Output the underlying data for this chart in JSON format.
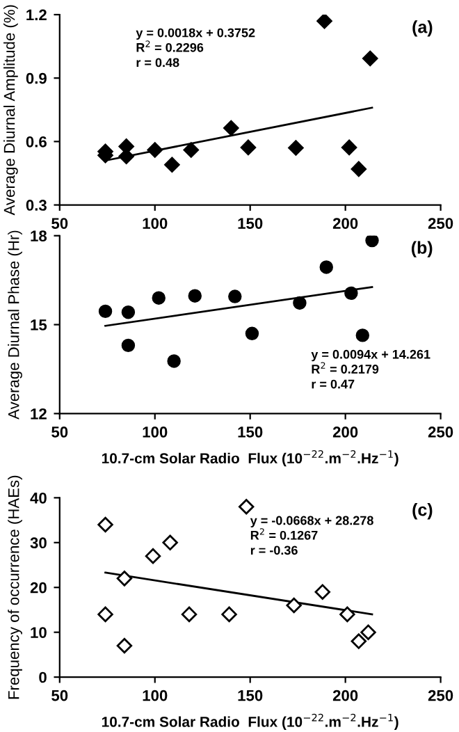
{
  "chart_data": [
    {
      "type": "scatter",
      "title": "(a)",
      "ylabel": "Average Diurnal Amplitude (%)",
      "xlim": [
        50,
        250
      ],
      "xticks": [
        50,
        100,
        150,
        200,
        250
      ],
      "ylim": [
        0.3,
        1.2
      ],
      "yticks": [
        0.3,
        0.6,
        0.9,
        1.2
      ],
      "grid": false,
      "legend": false,
      "series": [
        {
          "marker": "diamond",
          "color": "#000000",
          "x": [
            74,
            74,
            85,
            85,
            100,
            109,
            119,
            140,
            149,
            174,
            189,
            202,
            207,
            213
          ],
          "values": [
            0.535,
            0.553,
            0.577,
            0.53,
            0.56,
            0.49,
            0.56,
            0.664,
            0.572,
            0.57,
            1.17,
            0.572,
            0.47,
            0.993
          ]
        },
        {
          "type": "line",
          "color": "#000000",
          "x": [
            74,
            214
          ],
          "values": [
            0.51,
            0.76
          ]
        }
      ],
      "annotations": [
        "y = 0.0018x + 0.3752\nR$^{2}$ = 0.2296\nr = 0.48"
      ]
    },
    {
      "type": "scatter",
      "title": "(b)",
      "ylabel": "Average Diurnal Phase (Hr)",
      "xlabel": "10.7-cm Solar Radio  Flux (10$^{−22}$.m$^{−2}$.Hz$^{−1}$)",
      "xlim": [
        50,
        250
      ],
      "xticks": [
        50,
        100,
        150,
        200,
        250
      ],
      "ylim": [
        12,
        18
      ],
      "yticks": [
        12,
        15,
        18
      ],
      "grid": false,
      "legend": false,
      "series": [
        {
          "marker": "circle",
          "color": "#000000",
          "x": [
            74,
            86,
            86,
            102,
            110,
            121,
            142,
            151,
            176,
            190,
            203,
            209,
            214
          ],
          "values": [
            15.45,
            15.42,
            14.3,
            15.9,
            13.77,
            15.97,
            15.95,
            14.7,
            15.73,
            16.94,
            16.06,
            14.64,
            17.84
          ]
        },
        {
          "type": "line",
          "color": "#000000",
          "x": [
            74,
            214
          ],
          "values": [
            14.96,
            16.27
          ]
        }
      ],
      "annotations": [
        "y = 0.0094x + 14.261\nR$^{2}$ = 0.2179\nr = 0.47"
      ]
    },
    {
      "type": "scatter",
      "title": "(c)",
      "ylabel": "Frequency of occurrence (HAEs)",
      "xlabel": "10.7-cm Solar Radio  Flux (10$^{−22}$.m$^{−2}$.Hz$^{−1}$)",
      "xlim": [
        50,
        250
      ],
      "xticks": [
        50,
        100,
        150,
        200,
        250
      ],
      "ylim": [
        0,
        40
      ],
      "yticks": [
        0,
        10,
        20,
        30,
        40
      ],
      "grid": false,
      "legend": false,
      "series": [
        {
          "marker": "diamond",
          "color": "#ffffff",
          "x": [
            74,
            74,
            84,
            84,
            99,
            108,
            118,
            139,
            148,
            173,
            188,
            201,
            207,
            212
          ],
          "values": [
            34,
            14,
            22,
            7,
            27,
            30,
            14,
            14,
            38,
            16,
            19,
            14,
            8,
            10
          ]
        },
        {
          "type": "line",
          "color": "#000000",
          "x": [
            74,
            214
          ],
          "values": [
            23.3,
            14.0
          ]
        }
      ],
      "annotations": [
        "y = -0.0668x + 28.278\nR$^{2}$ = 0.1267\nr = -0.36"
      ]
    }
  ]
}
